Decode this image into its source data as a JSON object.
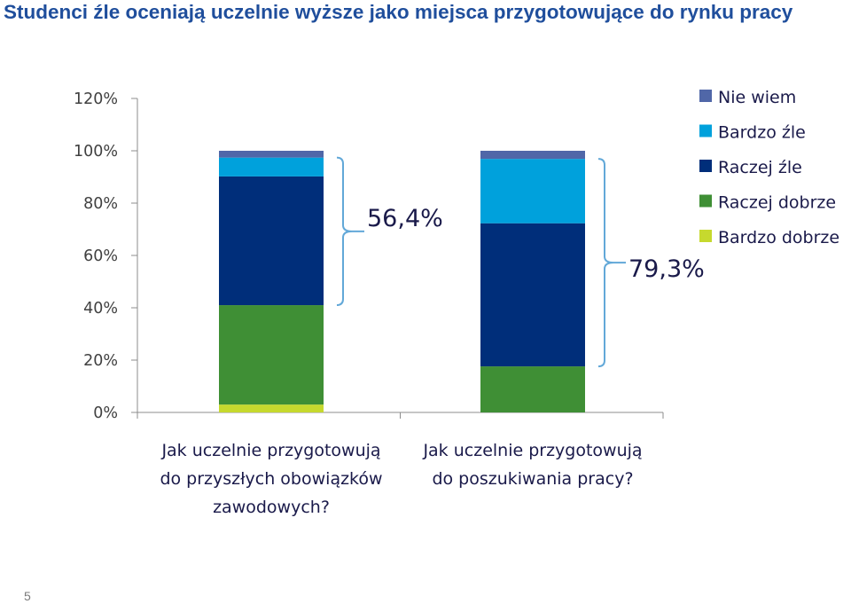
{
  "slide": {
    "title": "Studenci źle oceniają uczelnie wyższe jako miejsca przygotowujące do rynku pracy",
    "page_number": "5"
  },
  "chart_data": {
    "type": "bar",
    "stacked": true,
    "title": "",
    "xlabel": "",
    "ylabel": "",
    "ylim": [
      0,
      120
    ],
    "yticks": [
      "0%",
      "20%",
      "40%",
      "60%",
      "80%",
      "100%",
      "120%"
    ],
    "categories": [
      [
        "Jak uczelnie przygotowują",
        "do przyszłych obowiązków",
        "zawodowych?"
      ],
      [
        "Jak uczelnie przygotowują",
        "do poszukiwania pracy?"
      ]
    ],
    "series": [
      {
        "name": "Bardzo dobrze",
        "color": "#c6d92e",
        "values": [
          3.0,
          0.0
        ]
      },
      {
        "name": "Raczej dobrze",
        "color": "#3f8f35",
        "values": [
          38.0,
          17.6
        ]
      },
      {
        "name": "Raczej źle",
        "color": "#002e7a",
        "values": [
          49.2,
          54.7
        ]
      },
      {
        "name": "Bardzo źle",
        "color": "#00a1dc",
        "values": [
          7.2,
          24.6
        ]
      },
      {
        "name": "Nie wiem",
        "color": "#5067a8",
        "values": [
          2.6,
          3.1
        ]
      }
    ],
    "legend_position": "top-right",
    "legend_order": [
      "Nie wiem",
      "Bardzo źle",
      "Raczej źle",
      "Raczej dobrze",
      "Bardzo dobrze"
    ],
    "grid": false,
    "annotations": [
      {
        "text": "56,4%",
        "category_index": 0,
        "from_value": 41.0,
        "to_value": 97.4
      },
      {
        "text": "79,3%",
        "category_index": 1,
        "from_value": 17.6,
        "to_value": 96.9
      }
    ]
  }
}
